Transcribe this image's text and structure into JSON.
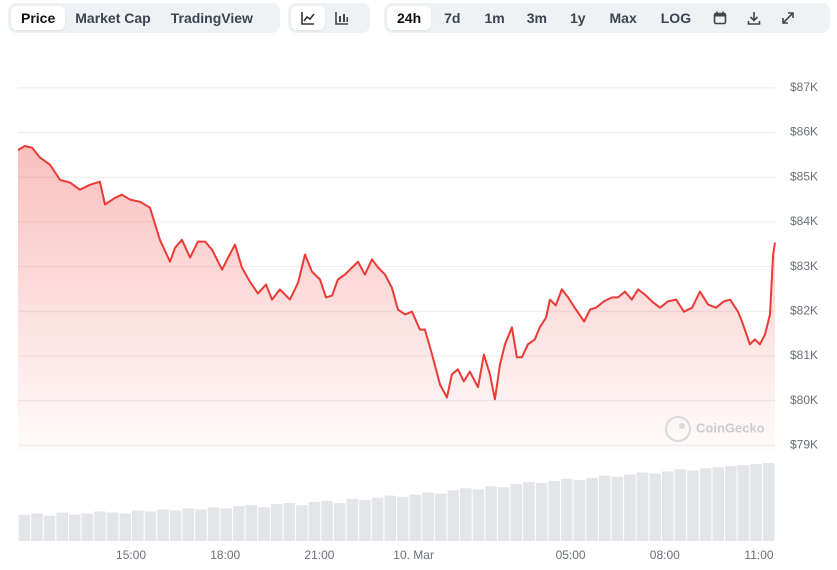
{
  "toolbar": {
    "views": [
      "Price",
      "Market Cap",
      "TradingView"
    ],
    "ranges": [
      "24h",
      "7d",
      "1m",
      "3m",
      "1y",
      "Max",
      "LOG"
    ]
  },
  "chart_data": {
    "type": "line",
    "watermark": "CoinGecko",
    "color": "#ec3a36",
    "x": [
      11.4,
      11.62,
      11.85,
      12.1,
      12.42,
      12.74,
      13.06,
      13.37,
      13.69,
      14.01,
      14.17,
      14.49,
      14.71,
      14.97,
      15.29,
      15.6,
      15.92,
      16.24,
      16.4,
      16.62,
      16.88,
      17.13,
      17.36,
      17.58,
      17.9,
      18.09,
      18.31,
      18.53,
      18.79,
      19.04,
      19.3,
      19.49,
      19.74,
      20.06,
      20.32,
      20.54,
      20.76,
      21.02,
      21.21,
      21.4,
      21.59,
      21.81,
      22.04,
      22.23,
      22.45,
      22.67,
      22.87,
      23.09,
      23.31,
      23.5,
      23.73,
      23.95,
      24.2,
      24.36,
      24.59,
      24.84,
      25.06,
      25.22,
      25.41,
      25.6,
      25.79,
      26.05,
      26.24,
      26.43,
      26.59,
      26.75,
      26.91,
      27.13,
      27.29,
      27.45,
      27.64,
      27.86,
      28.02,
      28.22,
      28.34,
      28.53,
      28.72,
      28.92,
      29.17,
      29.43,
      29.62,
      29.81,
      30.06,
      30.32,
      30.51,
      30.73,
      30.95,
      31.15,
      31.37,
      31.59,
      31.85,
      32.1,
      32.36,
      32.61,
      32.87,
      33.12,
      33.38,
      33.63,
      33.88,
      34.08,
      34.33,
      34.46,
      34.71,
      34.87,
      35.03,
      35.19,
      35.35,
      35.45,
      35.51
    ],
    "values": [
      85610,
      85700,
      85660,
      85440,
      85280,
      84940,
      84880,
      84720,
      84830,
      84900,
      84390,
      84540,
      84610,
      84500,
      84450,
      84320,
      83600,
      83110,
      83420,
      83600,
      83200,
      83560,
      83560,
      83380,
      82930,
      83200,
      83490,
      82980,
      82660,
      82400,
      82600,
      82260,
      82490,
      82260,
      82640,
      83270,
      82890,
      82710,
      82310,
      82350,
      82710,
      82820,
      82980,
      83110,
      82820,
      83160,
      82980,
      82820,
      82530,
      82040,
      81930,
      81990,
      81590,
      81590,
      81030,
      80360,
      80070,
      80590,
      80700,
      80430,
      80650,
      80300,
      81030,
      80590,
      80030,
      80810,
      81260,
      81640,
      80970,
      80970,
      81260,
      81370,
      81640,
      81860,
      82260,
      82130,
      82490,
      82310,
      82040,
      81770,
      82040,
      82080,
      82220,
      82310,
      82310,
      82440,
      82260,
      82490,
      82370,
      82220,
      82080,
      82220,
      82260,
      81990,
      82080,
      82440,
      82150,
      82080,
      82220,
      82260,
      81990,
      81770,
      81260,
      81370,
      81260,
      81480,
      81930,
      83270,
      83540
    ],
    "xlim": [
      11.4,
      35.51
    ],
    "xticks": [
      {
        "value": 15,
        "label": "15:00"
      },
      {
        "value": 18,
        "label": "18:00"
      },
      {
        "value": 21,
        "label": "21:00"
      },
      {
        "value": 24,
        "label": "10. Mar"
      },
      {
        "value": 29,
        "label": "05:00"
      },
      {
        "value": 32,
        "label": "08:00"
      },
      {
        "value": 35,
        "label": "11:00"
      }
    ],
    "ylim": [
      78850,
      87400
    ],
    "yticks": [
      {
        "value": 79000,
        "label": "$79K"
      },
      {
        "value": 80000,
        "label": "$80K"
      },
      {
        "value": 81000,
        "label": "$81K"
      },
      {
        "value": 82000,
        "label": "$82K"
      },
      {
        "value": 83000,
        "label": "$83K"
      },
      {
        "value": 84000,
        "label": "$84K"
      },
      {
        "value": 85000,
        "label": "$85K"
      },
      {
        "value": 86000,
        "label": "$86K"
      },
      {
        "value": 87000,
        "label": "$87K"
      }
    ],
    "grid": true,
    "volume": {
      "color": "#e3e5e8",
      "values": [
        25,
        26,
        24,
        27,
        25,
        26,
        28,
        27,
        26,
        29,
        28,
        30,
        29,
        31,
        30,
        32,
        31,
        33,
        34,
        32,
        35,
        36,
        34,
        37,
        38,
        36,
        40,
        39,
        41,
        43,
        42,
        44,
        46,
        45,
        48,
        50,
        49,
        52,
        51,
        54,
        56,
        55,
        57,
        59,
        58,
        60,
        62,
        61,
        63,
        65,
        64,
        66,
        68,
        67,
        69,
        70,
        71,
        72,
        73,
        74
      ]
    }
  }
}
